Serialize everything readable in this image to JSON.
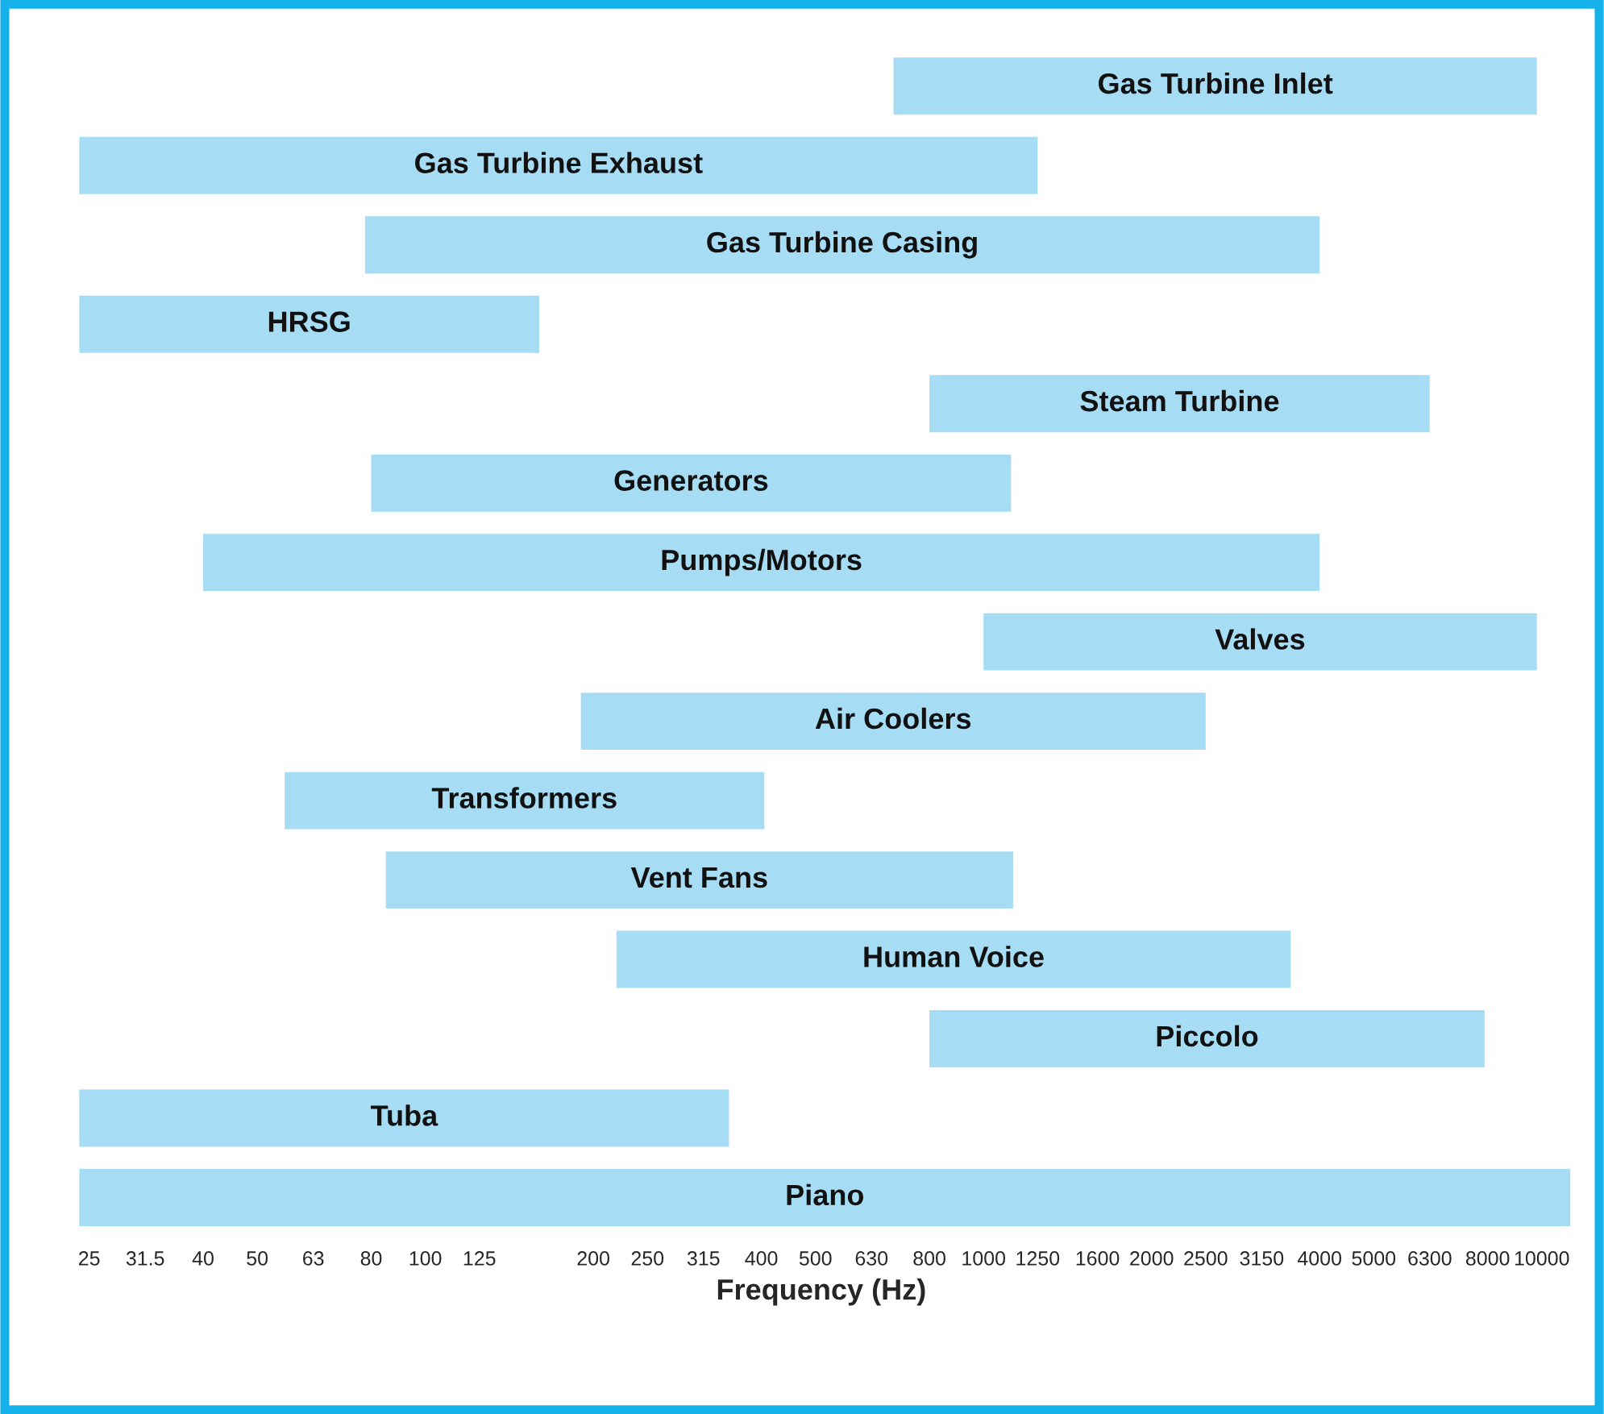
{
  "chart_data": {
    "type": "bar",
    "orientation": "horizontal",
    "xlabel": "Frequency (Hz)",
    "log": "x",
    "categories": [
      "Gas Turbine Inlet",
      "Gas Turbine Exhaust",
      "Gas Turbine Casing",
      "HRSG",
      "Steam Turbine",
      "Generators",
      "Pumps/Motors",
      "Valves",
      "Air Coolers",
      "Transformers",
      "Vent Fans",
      "Human Voice",
      "Piccolo",
      "Tuba",
      "Piano"
    ],
    "base": [
      690,
      24,
      78,
      24,
      800,
      80,
      40,
      1000,
      190,
      56,
      85,
      220,
      800,
      24,
      24
    ],
    "values": [
      9110,
      1226,
      3922,
      136,
      5500,
      1040,
      3960,
      8800,
      2310,
      349,
      1045,
      3330,
      7100,
      326,
      11226
    ],
    "color": "#a6dcf4",
    "xlim": [
      23,
      11400
    ],
    "xticks": [
      25,
      31.5,
      40,
      50,
      63,
      80,
      100,
      125,
      200,
      250,
      315,
      400,
      500,
      630,
      800,
      1000,
      1250,
      1600,
      2000,
      2500,
      3150,
      4000,
      5000,
      6300,
      8000,
      10000
    ],
    "grid": false,
    "legend": false
  }
}
